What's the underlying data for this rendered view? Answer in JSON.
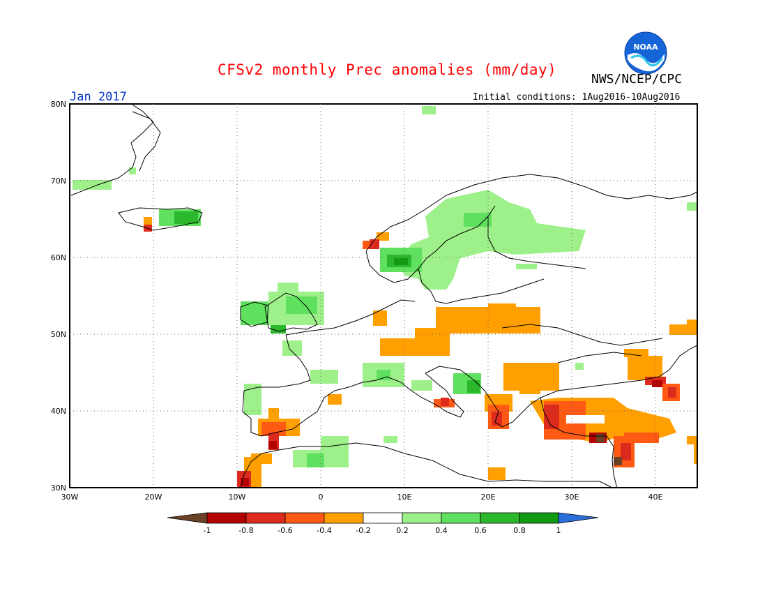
{
  "header": {
    "title": "CFSv2 monthly Prec anomalies (mm/day)",
    "agency": "NWS/NCEP/CPC",
    "logo_text": "NOAA",
    "month": "Jan 2017",
    "initial_conditions": "Initial conditions: 1Aug2016-10Aug2016"
  },
  "map": {
    "lat_labels": [
      "80N",
      "70N",
      "60N",
      "50N",
      "40N",
      "30N"
    ],
    "lon_labels": [
      "30W",
      "20W",
      "10W",
      "0",
      "10E",
      "20E",
      "30E",
      "40E"
    ]
  },
  "colorbar": {
    "ticks": [
      "-1",
      "-0.8",
      "-0.6",
      "-0.4",
      "-0.2",
      "0.2",
      "0.4",
      "0.6",
      "0.8",
      "1"
    ],
    "colors": [
      "#6b4226",
      "#b30000",
      "#dc2a1d",
      "#ff5a14",
      "#ffa000",
      "#ffffff",
      "#9ef08a",
      "#5fe05f",
      "#2cb82c",
      "#129a12",
      "#2a6fdc"
    ]
  },
  "anomaly_legend": {
    "dry_colors": [
      "#6b4226",
      "#b30000",
      "#dc2a1d",
      "#ff5a14",
      "#ffa000"
    ],
    "wet_colors": [
      "#9ef08a",
      "#5fe05f",
      "#2cb82c",
      "#129a12"
    ]
  }
}
